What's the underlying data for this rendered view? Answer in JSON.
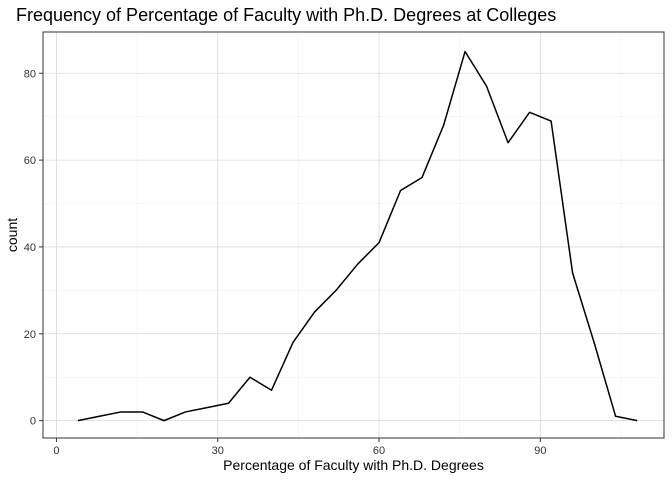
{
  "chart_data": {
    "type": "line",
    "title": "Frequency of Percentage of Faculty with Ph.D. Degrees at Colleges",
    "xlabel": "Percentage of Faculty with Ph.D. Degrees",
    "ylabel": "count",
    "xlim": [
      -2.5,
      113
    ],
    "ylim": [
      -4,
      89.5
    ],
    "x_ticks": [
      0,
      30,
      60,
      90
    ],
    "x_tick_labels": [
      "0",
      "30",
      "60",
      "90"
    ],
    "x_minor_ticks": [
      15,
      45,
      75,
      105
    ],
    "y_ticks": [
      0,
      20,
      40,
      60,
      80
    ],
    "y_tick_labels": [
      "0",
      "20",
      "40",
      "60",
      "80"
    ],
    "y_minor_ticks": [
      10,
      30,
      50,
      70
    ],
    "grid": true,
    "line_color": "#000000",
    "series": [
      {
        "x": [
          4,
          8,
          12,
          16,
          20,
          24,
          28,
          32,
          36,
          40,
          44,
          48,
          52,
          56,
          60,
          64,
          68,
          72,
          76,
          80,
          84,
          88,
          92,
          96,
          100,
          104,
          108
        ],
        "values": [
          0,
          1,
          2,
          2,
          0,
          2,
          3,
          4,
          10,
          7,
          18,
          25,
          30,
          36,
          41,
          53,
          56,
          68,
          85,
          77,
          64,
          71,
          69,
          34,
          18,
          1,
          0
        ]
      }
    ]
  }
}
